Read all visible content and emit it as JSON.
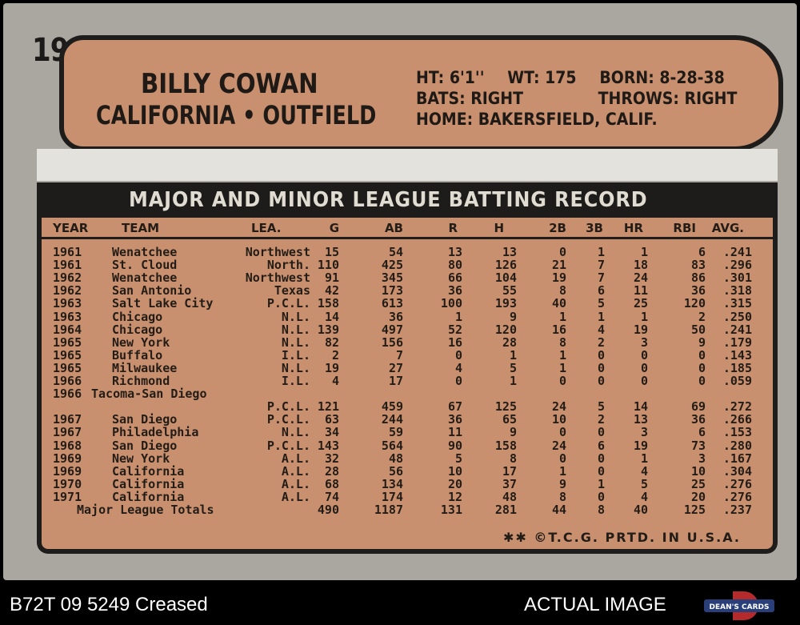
{
  "card": {
    "number": "19",
    "player_name": "BILLY COWAN",
    "team_position": "CALIFORNIA • OUTFIELD",
    "bio": {
      "height": "HT: 6'1''",
      "weight": "WT: 175",
      "born": "BORN: 8-28-38",
      "bats": "BATS: RIGHT",
      "throws": "THROWS: RIGHT",
      "home": "HOME: BAKERSFIELD, CALIF."
    },
    "record_title": "MAJOR AND MINOR LEAGUE BATTING RECORD",
    "columns": [
      "YEAR",
      "TEAM",
      "LEA.",
      "G",
      "AB",
      "R",
      "H",
      "2B",
      "3B",
      "HR",
      "RBI",
      "AVG."
    ],
    "rows": [
      [
        "1961",
        "Wenatchee",
        "Northwest",
        "15",
        "54",
        "13",
        "13",
        "0",
        "1",
        "1",
        "6",
        ".241"
      ],
      [
        "1961",
        "St. Cloud",
        "North.",
        "110",
        "425",
        "80",
        "126",
        "21",
        "7",
        "18",
        "83",
        ".296"
      ],
      [
        "1962",
        "Wenatchee",
        "Northwest",
        "91",
        "345",
        "66",
        "104",
        "19",
        "7",
        "24",
        "86",
        ".301"
      ],
      [
        "1962",
        "San Antonio",
        "Texas",
        "42",
        "173",
        "36",
        "55",
        "8",
        "6",
        "11",
        "36",
        ".318"
      ],
      [
        "1963",
        "Salt Lake City",
        "P.C.L.",
        "158",
        "613",
        "100",
        "193",
        "40",
        "5",
        "25",
        "120",
        ".315"
      ],
      [
        "1963",
        "Chicago",
        "N.L.",
        "14",
        "36",
        "1",
        "9",
        "1",
        "1",
        "1",
        "2",
        ".250"
      ],
      [
        "1964",
        "Chicago",
        "N.L.",
        "139",
        "497",
        "52",
        "120",
        "16",
        "4",
        "19",
        "50",
        ".241"
      ],
      [
        "1965",
        "New York",
        "N.L.",
        "82",
        "156",
        "16",
        "28",
        "8",
        "2",
        "3",
        "9",
        ".179"
      ],
      [
        "1965",
        "Buffalo",
        "I.L.",
        "2",
        "7",
        "0",
        "1",
        "1",
        "0",
        "0",
        "0",
        ".143"
      ],
      [
        "1965",
        "Milwaukee",
        "N.L.",
        "19",
        "27",
        "4",
        "5",
        "1",
        "0",
        "0",
        "0",
        ".185"
      ],
      [
        "1966",
        "Richmond",
        "I.L.",
        "4",
        "17",
        "0",
        "1",
        "0",
        "0",
        "0",
        "0",
        ".059"
      ],
      [
        "1966",
        "Tacoma-San Diego",
        "",
        "",
        "",
        "",
        "",
        "",
        "",
        "",
        "",
        ""
      ],
      [
        "",
        "",
        "P.C.L.",
        "121",
        "459",
        "67",
        "125",
        "24",
        "5",
        "14",
        "69",
        ".272"
      ],
      [
        "1967",
        "San Diego",
        "P.C.L.",
        "63",
        "244",
        "36",
        "65",
        "10",
        "2",
        "13",
        "36",
        ".266"
      ],
      [
        "1967",
        "Philadelphia",
        "N.L.",
        "34",
        "59",
        "11",
        "9",
        "0",
        "0",
        "3",
        "6",
        ".153"
      ],
      [
        "1968",
        "San Diego",
        "P.C.L.",
        "143",
        "564",
        "90",
        "158",
        "24",
        "6",
        "19",
        "73",
        ".280"
      ],
      [
        "1969",
        "New York",
        "A.L.",
        "32",
        "48",
        "5",
        "8",
        "0",
        "0",
        "1",
        "3",
        ".167"
      ],
      [
        "1969",
        "California",
        "A.L.",
        "28",
        "56",
        "10",
        "17",
        "1",
        "0",
        "4",
        "10",
        ".304"
      ],
      [
        "1970",
        "California",
        "A.L.",
        "68",
        "134",
        "20",
        "37",
        "9",
        "1",
        "5",
        "25",
        ".276"
      ],
      [
        "1971",
        "California",
        "A.L.",
        "74",
        "174",
        "12",
        "48",
        "8",
        "0",
        "4",
        "20",
        ".276"
      ]
    ],
    "totals_label": "Major League Totals",
    "totals": [
      "490",
      "1187",
      "131",
      "281",
      "44",
      "8",
      "40",
      "125",
      ".237"
    ],
    "footer": "✱✱ ©T.C.G. PRTD. IN U.S.A."
  },
  "overlay": {
    "left_caption": "B72T 09 5249 Creased",
    "right_caption": "ACTUAL IMAGE",
    "logo_text": "DEAN'S CARDS"
  },
  "colors": {
    "card_stock": "#a9a7a0",
    "plate": "#c8906e",
    "ink": "#1e1d1b"
  }
}
